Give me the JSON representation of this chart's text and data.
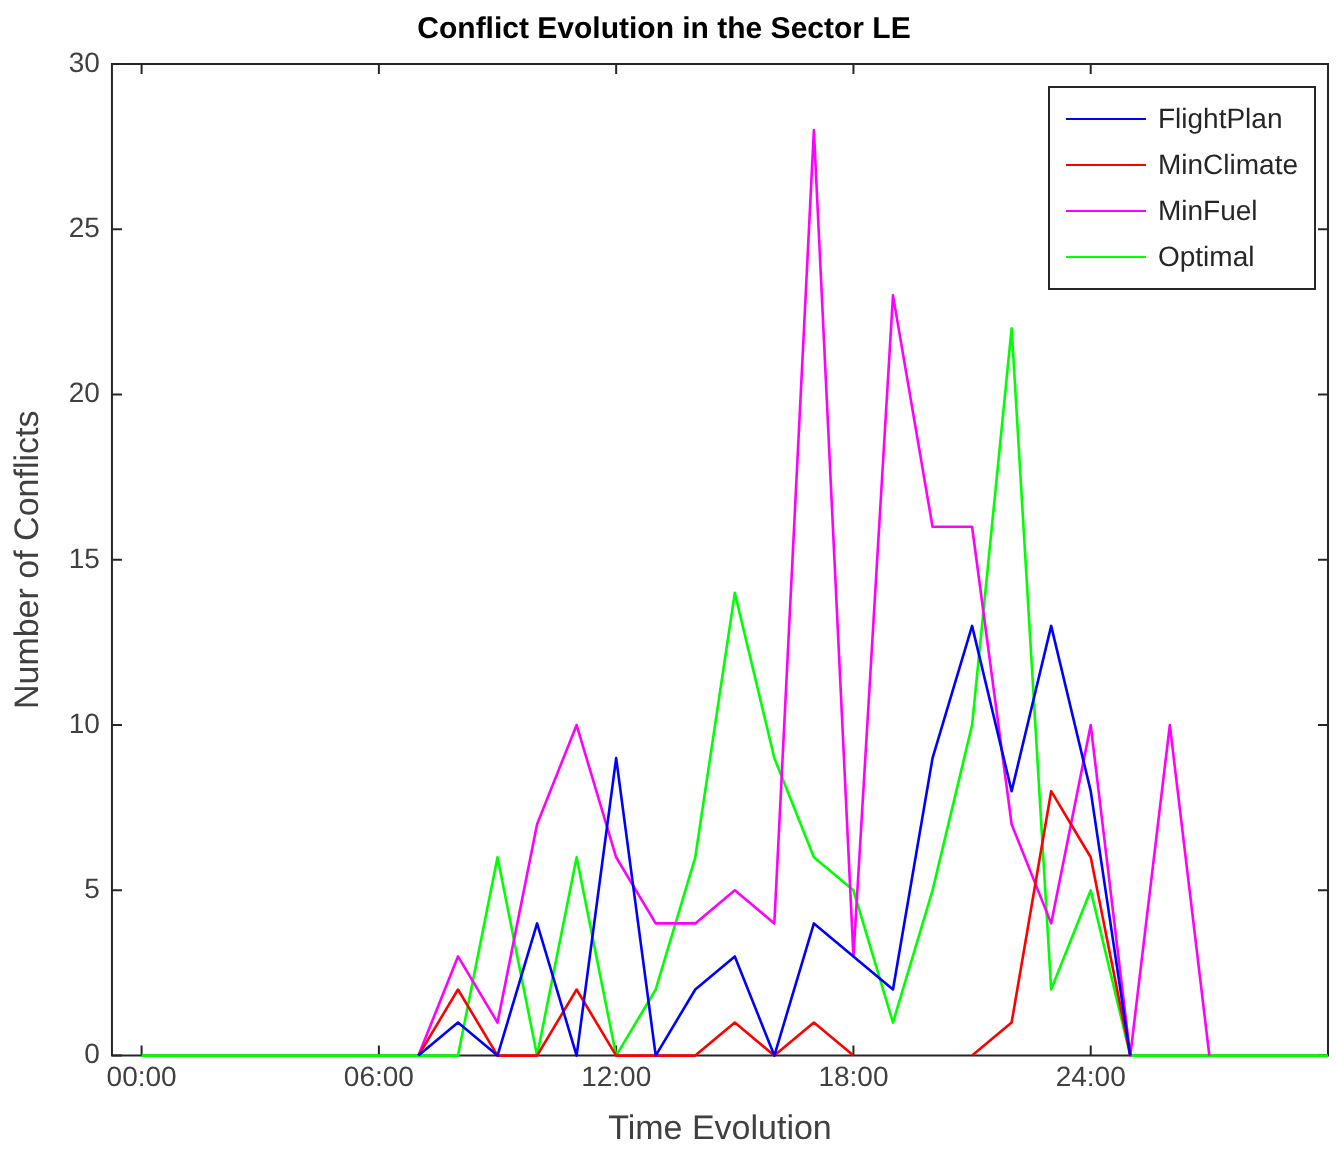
{
  "chart_data": {
    "type": "line",
    "title": "Conflict Evolution in the Sector LE",
    "xlabel": "Time Evolution",
    "ylabel": "Number of Conflicts",
    "x": [
      0,
      1,
      2,
      3,
      4,
      5,
      6,
      7,
      8,
      9,
      10,
      11,
      12,
      13,
      14,
      15,
      16,
      17,
      18,
      19,
      20,
      21,
      22,
      23,
      24,
      25,
      26,
      27,
      28,
      29,
      30
    ],
    "series": [
      {
        "name": "FlightPlan",
        "color": "#0000ff",
        "values": [
          null,
          null,
          null,
          null,
          null,
          null,
          null,
          0,
          1,
          0,
          4,
          0,
          9,
          0,
          2,
          3,
          0,
          4,
          3,
          2,
          9,
          13,
          8,
          13,
          8,
          0,
          null,
          null,
          null,
          null,
          null
        ]
      },
      {
        "name": "MinClimate",
        "color": "#ff0000",
        "values": [
          null,
          null,
          null,
          null,
          null,
          null,
          null,
          0,
          2,
          0,
          0,
          2,
          0,
          0,
          0,
          1,
          0,
          1,
          0,
          null,
          null,
          0,
          1,
          8,
          6,
          0,
          null,
          null,
          null,
          null,
          null
        ]
      },
      {
        "name": "MinFuel",
        "color": "#ff00ff",
        "values": [
          null,
          null,
          null,
          null,
          null,
          null,
          null,
          0,
          3,
          1,
          7,
          10,
          6,
          4,
          4,
          5,
          4,
          28,
          3,
          23,
          16,
          16,
          7,
          4,
          10,
          0,
          10,
          0,
          null,
          null,
          null
        ]
      },
      {
        "name": "Optimal",
        "color": "#00ff00",
        "values": [
          0,
          0,
          0,
          0,
          0,
          0,
          0,
          0,
          0,
          6,
          0,
          6,
          0,
          2,
          6,
          14,
          9,
          6,
          5,
          1,
          5,
          10,
          22,
          2,
          5,
          0,
          0,
          0,
          0,
          0,
          0
        ]
      }
    ],
    "xlim": [
      -0.75,
      30
    ],
    "xticks": [
      {
        "value": 0,
        "label": "00:00"
      },
      {
        "value": 6,
        "label": "06:00"
      },
      {
        "value": 12,
        "label": "12:00"
      },
      {
        "value": 18,
        "label": "18:00"
      },
      {
        "value": 24,
        "label": "24:00"
      }
    ],
    "ylim": [
      0,
      30
    ],
    "yticks": [
      0,
      5,
      10,
      15,
      20,
      25,
      30
    ],
    "grid": false,
    "legend": "top right",
    "marker": "none",
    "line_style": "solid"
  }
}
